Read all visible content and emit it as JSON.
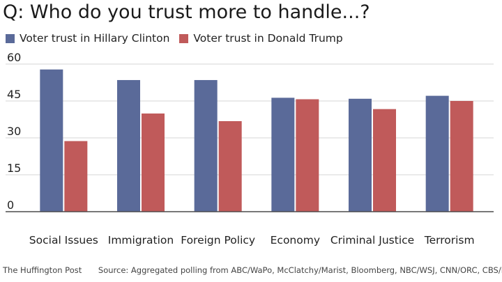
{
  "title": "Q: Who do you trust more to handle...?",
  "footer": {
    "brand": "The Huffington Post",
    "source": "Source: Aggregated polling from ABC/WaPo, McClatchy/Marist, Bloomberg, NBC/WSJ, CNN/ORC, CBS/NYT"
  },
  "chart_data": {
    "type": "bar",
    "categories": [
      "Social Issues",
      "Immigration",
      "Foreign Policy",
      "Economy",
      "Criminal Justice",
      "Terrorism"
    ],
    "series": [
      {
        "name": "Voter trust in Hillary Clinton",
        "color": "#5a6a99",
        "values": [
          57.8,
          53.5,
          53.5,
          46.3,
          45.9,
          47.1
        ]
      },
      {
        "name": "Voter trust in Donald Trump",
        "color": "#c05a5a",
        "values": [
          28.7,
          39.9,
          36.8,
          45.7,
          41.7,
          45.0
        ]
      }
    ],
    "yticks": [
      0,
      15,
      30,
      45,
      60
    ],
    "ylim": [
      0,
      60
    ],
    "grid": true,
    "legend": "top-left"
  }
}
